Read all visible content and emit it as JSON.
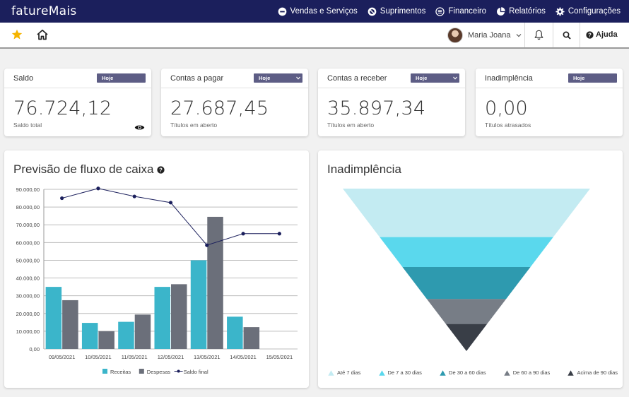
{
  "app": {
    "logo": "fatureMais"
  },
  "nav": {
    "items": [
      {
        "label": "Vendas e Serviços",
        "icon": "minus-circle-icon"
      },
      {
        "label": "Suprimentos",
        "icon": "ban-icon"
      },
      {
        "label": "Financeiro",
        "icon": "list-circle-icon"
      },
      {
        "label": "Relatórios",
        "icon": "pie-chart-icon"
      },
      {
        "label": "Configurações",
        "icon": "gear-icon"
      }
    ]
  },
  "toolbar": {
    "user_name": "Maria Joana",
    "help_label": "Ajuda"
  },
  "kpis": [
    {
      "title": "Saldo",
      "period": "Hoje",
      "dropdown": false,
      "value": "76.724,12",
      "subtitle": "Saldo total",
      "show_eye": true
    },
    {
      "title": "Contas a pagar",
      "period": "Hoje",
      "dropdown": true,
      "value": "27.687,45",
      "subtitle": "Títulos em aberto",
      "show_eye": false
    },
    {
      "title": "Contas a receber",
      "period": "Hoje",
      "dropdown": true,
      "value": "35.897,34",
      "subtitle": "Títulos em aberto",
      "show_eye": false
    },
    {
      "title": "Inadimplência",
      "period": "Hoje",
      "dropdown": false,
      "value": "0,00",
      "subtitle": "Títulos atrasados",
      "show_eye": false
    }
  ],
  "cashflow": {
    "title": "Previsão de fluxo de caixa"
  },
  "delinquency": {
    "title": "Inadimplência",
    "legend": [
      {
        "label": "Até 7 dias",
        "color": "#c3ebf2"
      },
      {
        "label": "De 7 a 30 dias",
        "color": "#5ad8ed"
      },
      {
        "label": "De 30 a 60 dias",
        "color": "#2e9aaf"
      },
      {
        "label": "De 60 a 90 dias",
        "color": "#777d86"
      },
      {
        "label": "Acima de 90 dias",
        "color": "#393e47"
      }
    ],
    "funnel_shares": [
      0.34,
      0.21,
      0.225,
      0.175,
      0.19
    ]
  },
  "chart_data": {
    "type": "bar",
    "title": "Previsão de fluxo de caixa",
    "categories": [
      "09/05/2021",
      "10/05/2021",
      "11/05/2021",
      "12/05/2021",
      "13/05/2021",
      "14/05/2021",
      "15/05/2021"
    ],
    "series": [
      {
        "name": "Receitas",
        "type": "bar",
        "color": "#3bb5ca",
        "values": [
          35000,
          14700,
          15300,
          35000,
          50000,
          18200,
          0
        ]
      },
      {
        "name": "Despesas",
        "type": "bar",
        "color": "#6b6f7a",
        "values": [
          27500,
          10000,
          19400,
          36500,
          74500,
          12300,
          0
        ]
      },
      {
        "name": "Saldo final",
        "type": "line",
        "color": "#1b1f5c",
        "values": [
          85000,
          90500,
          86000,
          82500,
          58500,
          65000,
          65000
        ]
      }
    ],
    "yticks": [
      "0,00",
      "10.000,00",
      "20.000,00",
      "30.000,00",
      "40.000,00",
      "50.000,00",
      "60.000,00",
      "70.000,00",
      "80.000,00",
      "90.000,00"
    ],
    "ylim": [
      0,
      90000
    ],
    "grid": true,
    "legend": "bottom-center"
  },
  "colors": {
    "nav": "#1b1f5c",
    "pill": "#5d5d85",
    "accent_star": "#f5b400"
  }
}
